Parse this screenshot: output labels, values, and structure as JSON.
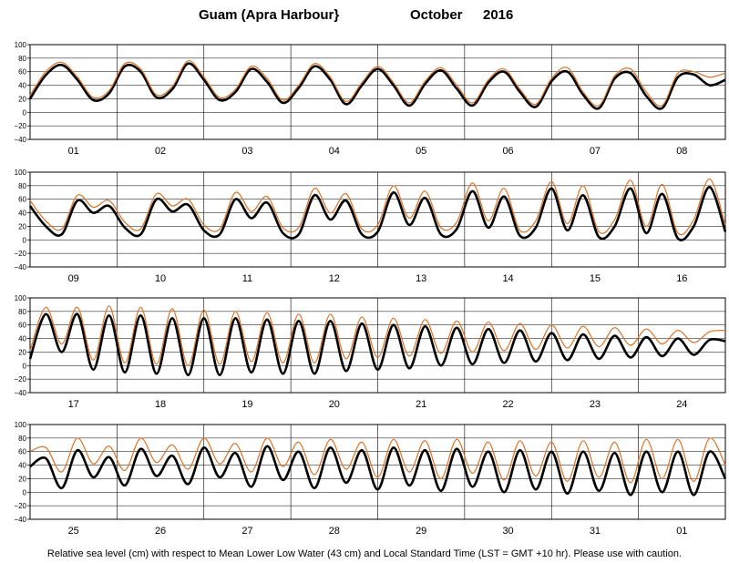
{
  "header": {
    "location": "Guam (Apra Harbour}",
    "month": "October",
    "year": "2016"
  },
  "footer": {
    "note": "Relative sea level (cm) with respect to Mean Lower Low Water (43 cm) and Local Standard Time (LST = GMT +10 hr). Please use with caution."
  },
  "colors": {
    "predicted": "#000000",
    "observed": "#e07020",
    "grid": "#000000"
  },
  "chart_data": {
    "type": "line",
    "units": "cm",
    "y_ticks": [
      "100",
      "80",
      "60",
      "40",
      "20",
      "0",
      "−20",
      "−40"
    ],
    "ylim": [
      -40,
      100
    ],
    "grid": true,
    "panels": [
      {
        "day_labels": [
          "01",
          "02",
          "03",
          "04",
          "05",
          "06",
          "07",
          "08"
        ],
        "series": [
          {
            "color": "black",
            "values": [
              20,
              55,
              70,
              48,
              18,
              28,
              68,
              60,
              22,
              34,
              72,
              48,
              18,
              30,
              64,
              45,
              14,
              36,
              68,
              48,
              12,
              40,
              64,
              40,
              10,
              42,
              62,
              35,
              10,
              44,
              60,
              30,
              8,
              46,
              60,
              26,
              6,
              50,
              58,
              24,
              6,
              52,
              56,
              40,
              48
            ]
          },
          {
            "color": "orange",
            "values": [
              25,
              60,
              74,
              52,
              22,
              32,
              72,
              64,
              26,
              38,
              76,
              52,
              22,
              34,
              68,
              50,
              18,
              40,
              72,
              52,
              16,
              44,
              68,
              44,
              14,
              46,
              66,
              40,
              14,
              48,
              64,
              34,
              12,
              50,
              66,
              30,
              10,
              54,
              64,
              30,
              10,
              58,
              60,
              52,
              58
            ]
          }
        ]
      },
      {
        "day_labels": [
          "09",
          "10",
          "11",
          "12",
          "13",
          "14",
          "15",
          "16"
        ],
        "series": [
          {
            "color": "black",
            "values": [
              50,
              20,
              8,
              58,
              40,
              50,
              18,
              8,
              60,
              42,
              52,
              14,
              8,
              60,
              32,
              55,
              10,
              8,
              66,
              30,
              58,
              8,
              12,
              70,
              22,
              62,
              8,
              16,
              72,
              18,
              64,
              6,
              18,
              76,
              14,
              66,
              4,
              20,
              76,
              10,
              68,
              2,
              20,
              78,
              12
            ]
          },
          {
            "color": "orange",
            "values": [
              58,
              28,
              16,
              66,
              48,
              58,
              26,
              16,
              68,
              50,
              60,
              22,
              16,
              70,
              42,
              64,
              18,
              18,
              76,
              40,
              68,
              16,
              22,
              80,
              32,
              72,
              18,
              26,
              84,
              28,
              76,
              14,
              28,
              86,
              24,
              80,
              12,
              30,
              88,
              20,
              82,
              10,
              30,
              90,
              22
            ]
          }
        ]
      },
      {
        "day_labels": [
          "17",
          "18",
          "19",
          "20",
          "21",
          "22",
          "23",
          "24"
        ],
        "series": [
          {
            "color": "black",
            "values": [
              10,
              76,
              20,
              76,
              -6,
              74,
              -10,
              74,
              -12,
              70,
              -14,
              70,
              -14,
              70,
              -10,
              68,
              -12,
              66,
              -12,
              66,
              -8,
              62,
              -6,
              60,
              -4,
              58,
              0,
              56,
              2,
              54,
              4,
              52,
              6,
              48,
              8,
              46,
              10,
              44,
              12,
              42,
              14,
              40,
              16,
              38,
              36
            ]
          },
          {
            "color": "orange",
            "values": [
              22,
              86,
              32,
              86,
              8,
              88,
              4,
              86,
              2,
              84,
              0,
              82,
              2,
              80,
              6,
              78,
              4,
              76,
              4,
              76,
              10,
              72,
              12,
              70,
              14,
              68,
              18,
              66,
              20,
              64,
              22,
              62,
              24,
              60,
              26,
              58,
              28,
              56,
              30,
              54,
              32,
              52,
              34,
              50,
              52
            ]
          }
        ]
      },
      {
        "day_labels": [
          "25",
          "26",
          "27",
          "28",
          "29",
          "30",
          "31",
          "01"
        ],
        "series": [
          {
            "color": "black",
            "values": [
              38,
              50,
              6,
              62,
              22,
              52,
              10,
              64,
              24,
              54,
              12,
              66,
              22,
              58,
              8,
              68,
              18,
              60,
              6,
              66,
              14,
              62,
              4,
              66,
              10,
              62,
              2,
              64,
              8,
              60,
              0,
              62,
              4,
              60,
              -2,
              60,
              2,
              58,
              -4,
              60,
              0,
              60,
              -4,
              60,
              20
            ]
          },
          {
            "color": "orange",
            "values": [
              60,
              66,
              30,
              80,
              42,
              68,
              32,
              80,
              44,
              70,
              34,
              80,
              42,
              72,
              30,
              80,
              38,
              74,
              26,
              78,
              34,
              74,
              22,
              78,
              30,
              76,
              20,
              78,
              28,
              74,
              18,
              76,
              24,
              74,
              16,
              76,
              22,
              74,
              14,
              78,
              20,
              78,
              16,
              80,
              40
            ]
          }
        ]
      }
    ]
  }
}
